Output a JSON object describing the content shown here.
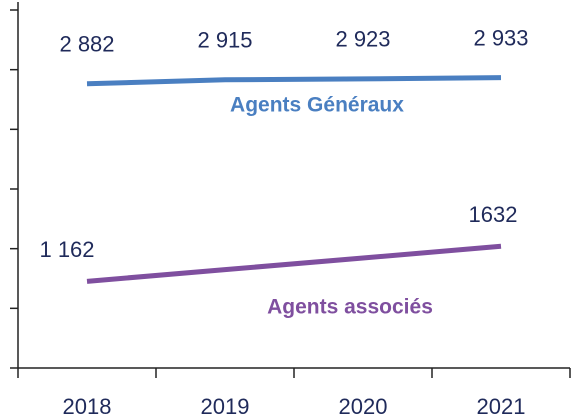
{
  "chart_data": {
    "type": "line",
    "categories": [
      "2018",
      "2019",
      "2020",
      "2021"
    ],
    "series": [
      {
        "name": "Agents Généraux",
        "color": "#4a7fc1",
        "values": [
          2882,
          2915,
          2923,
          2933
        ],
        "value_labels": [
          "2 882",
          "2 915",
          "2 923",
          "2 933"
        ]
      },
      {
        "name": "Agents associés",
        "color": "#7f4f9f",
        "axis": "y2",
        "values": [
          1162,
          1319,
          1475,
          1632
        ],
        "value_labels": [
          "1 162",
          null,
          null,
          "1632"
        ]
      }
    ],
    "ylim": [
      500,
      3500
    ],
    "yticks": [
      500,
      1000,
      1500,
      2000,
      2500,
      3000,
      3500
    ],
    "y2lim": [
      0,
      4800
    ],
    "label_color": "#1f2a5a"
  }
}
